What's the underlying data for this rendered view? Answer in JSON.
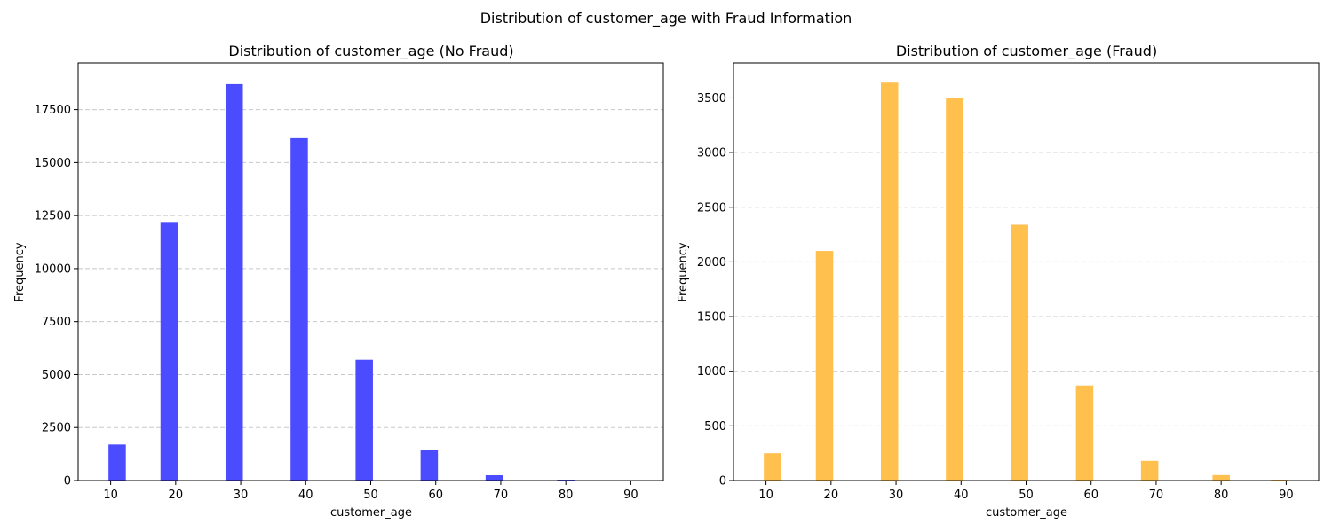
{
  "figure_title": "Distribution of customer_age with Fraud Information",
  "chart_data": [
    {
      "type": "bar",
      "title": "Distribution of customer_age (No Fraud)",
      "xlabel": "customer_age",
      "ylabel": "Frequency",
      "color": "#4b4bff",
      "xlim": [
        5,
        95
      ],
      "ylim": [
        0,
        19700
      ],
      "xticks": [
        10,
        20,
        30,
        40,
        50,
        60,
        70,
        80,
        90
      ],
      "yticks": [
        0,
        2500,
        5000,
        7500,
        10000,
        12500,
        15000,
        17500
      ],
      "grid": "y",
      "bins": [
        {
          "x": 11,
          "value": 1700
        },
        {
          "x": 19,
          "value": 12200
        },
        {
          "x": 29,
          "value": 18700
        },
        {
          "x": 39,
          "value": 16150
        },
        {
          "x": 49,
          "value": 5700
        },
        {
          "x": 59,
          "value": 1450
        },
        {
          "x": 69,
          "value": 250
        },
        {
          "x": 80,
          "value": 40
        },
        {
          "x": 89,
          "value": 5
        }
      ]
    },
    {
      "type": "bar",
      "title": "Distribution of customer_age (Fraud)",
      "xlabel": "customer_age",
      "ylabel": "Frequency",
      "color": "#ffc04d",
      "xlim": [
        5,
        95
      ],
      "ylim": [
        0,
        3820
      ],
      "xticks": [
        10,
        20,
        30,
        40,
        50,
        60,
        70,
        80,
        90
      ],
      "yticks": [
        0,
        500,
        1000,
        1500,
        2000,
        2500,
        3000,
        3500
      ],
      "grid": "y",
      "bins": [
        {
          "x": 11,
          "value": 250
        },
        {
          "x": 19,
          "value": 2100
        },
        {
          "x": 29,
          "value": 3640
        },
        {
          "x": 39,
          "value": 3500
        },
        {
          "x": 49,
          "value": 2340
        },
        {
          "x": 59,
          "value": 870
        },
        {
          "x": 69,
          "value": 180
        },
        {
          "x": 80,
          "value": 50
        },
        {
          "x": 89,
          "value": 8
        }
      ]
    }
  ]
}
